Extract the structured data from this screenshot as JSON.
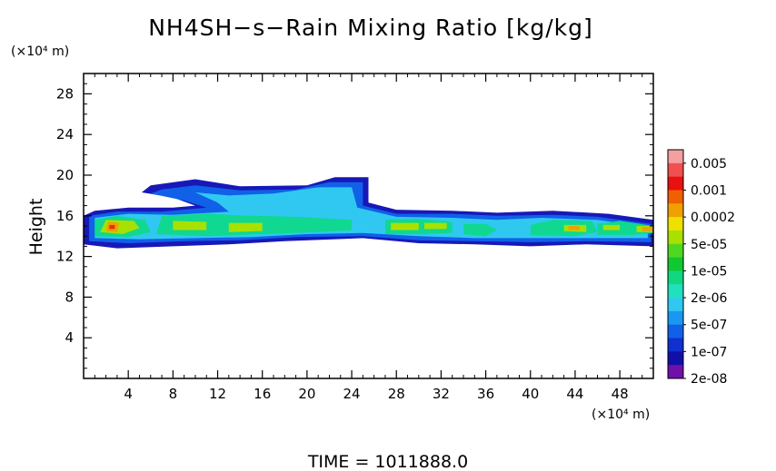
{
  "chart_data": {
    "type": "heatmap",
    "title": "NH4SH−s−Rain Mixing Ratio [kg/kg]",
    "ylabel": "Height",
    "y_unit_label": "(×10⁴ m)",
    "x_unit_label": "(×10⁴ m)",
    "time_label": "TIME = 1011888.0",
    "xlim": [
      0,
      51
    ],
    "ylim": [
      0,
      30
    ],
    "xticks": [
      4,
      8,
      12,
      16,
      20,
      24,
      28,
      32,
      36,
      40,
      44,
      48
    ],
    "yticks": [
      4,
      8,
      12,
      16,
      20,
      24,
      28
    ],
    "colorbar": {
      "labels": [
        "0.005",
        "0.001",
        "0.0002",
        "5e-05",
        "1e-05",
        "2e-06",
        "5e-07",
        "1e-07",
        "2e-08"
      ],
      "colors": [
        "#f4a0a0",
        "#f05050",
        "#e81010",
        "#f06000",
        "#f0a000",
        "#f0e000",
        "#a8e000",
        "#50d820",
        "#10c830",
        "#10d880",
        "#20e0c0",
        "#30c8f0",
        "#1898f0",
        "#1060e8",
        "#1030d0",
        "#1010a8",
        "#7010a8"
      ]
    },
    "layers": [
      {
        "value": "2e-08",
        "color": "#1818b8",
        "regions": [
          {
            "poly": [
              [
                0,
                13.2
              ],
              [
                3,
                12.8
              ],
              [
                8,
                13.0
              ],
              [
                13,
                13.2
              ],
              [
                18,
                13.5
              ],
              [
                25,
                13.8
              ],
              [
                30,
                13.3
              ],
              [
                35,
                13.2
              ],
              [
                40,
                13.0
              ],
              [
                45,
                13.2
              ],
              [
                51,
                13.0
              ],
              [
                51,
                15.6
              ],
              [
                47,
                16.2
              ],
              [
                42,
                16.5
              ],
              [
                37,
                16.3
              ],
              [
                33,
                16.5
              ],
              [
                28,
                16.6
              ],
              [
                25.5,
                17.3
              ],
              [
                25.5,
                19.8
              ],
              [
                22.5,
                19.8
              ],
              [
                20,
                19.0
              ],
              [
                14,
                18.9
              ],
              [
                10,
                19.6
              ],
              [
                6,
                19.0
              ],
              [
                5.2,
                18.3
              ],
              [
                8,
                17.8
              ],
              [
                10,
                17.0
              ],
              [
                8,
                16.8
              ],
              [
                4,
                16.8
              ],
              [
                1,
                16.5
              ],
              [
                0,
                16.0
              ]
            ]
          }
        ]
      },
      {
        "value": "1e-07",
        "color": "#1060e8",
        "regions": [
          {
            "poly": [
              [
                0.5,
                13.5
              ],
              [
                4,
                13.3
              ],
              [
                9,
                13.5
              ],
              [
                14,
                13.6
              ],
              [
                19,
                13.9
              ],
              [
                25,
                14.0
              ],
              [
                30,
                13.6
              ],
              [
                35,
                13.5
              ],
              [
                40,
                13.4
              ],
              [
                45,
                13.5
              ],
              [
                50.8,
                13.4
              ],
              [
                50.8,
                15.2
              ],
              [
                46,
                15.9
              ],
              [
                42,
                16.1
              ],
              [
                37,
                16.0
              ],
              [
                33,
                16.2
              ],
              [
                28,
                16.2
              ],
              [
                25,
                17.0
              ],
              [
                25,
                19.3
              ],
              [
                22,
                19.3
              ],
              [
                19,
                18.6
              ],
              [
                14,
                18.5
              ],
              [
                10,
                19.0
              ],
              [
                7,
                18.6
              ],
              [
                6,
                18.2
              ],
              [
                9,
                17.5
              ],
              [
                11,
                16.8
              ],
              [
                7,
                16.4
              ],
              [
                3,
                16.4
              ],
              [
                0.5,
                16.0
              ]
            ]
          }
        ]
      },
      {
        "value": "5e-07",
        "color": "#30c8f0",
        "regions": [
          {
            "poly": [
              [
                1,
                13.8
              ],
              [
                5,
                13.7
              ],
              [
                10,
                13.8
              ],
              [
                15,
                13.9
              ],
              [
                20,
                14.2
              ],
              [
                25,
                14.3
              ],
              [
                30,
                14.0
              ],
              [
                35,
                13.8
              ],
              [
                40,
                13.8
              ],
              [
                45,
                13.8
              ],
              [
                50.5,
                13.8
              ],
              [
                50.5,
                14.9
              ],
              [
                46,
                15.6
              ],
              [
                41,
                15.8
              ],
              [
                37,
                15.6
              ],
              [
                33,
                15.8
              ],
              [
                28,
                15.9
              ],
              [
                24.5,
                16.8
              ],
              [
                24,
                18.8
              ],
              [
                21,
                18.8
              ],
              [
                17,
                18.2
              ],
              [
                13,
                18.0
              ],
              [
                10,
                18.3
              ],
              [
                12,
                17.3
              ],
              [
                13,
                16.4
              ],
              [
                8,
                16.1
              ],
              [
                4,
                16.2
              ],
              [
                1,
                15.8
              ]
            ]
          }
        ]
      },
      {
        "value": "5e-06",
        "color": "#10d890",
        "regions": [
          {
            "poly": [
              [
                1,
                14.0
              ],
              [
                4,
                13.9
              ],
              [
                6,
                14.4
              ],
              [
                5.5,
                15.6
              ],
              [
                3,
                16.0
              ],
              [
                1,
                15.6
              ]
            ]
          },
          {
            "poly": [
              [
                6.5,
                14.2
              ],
              [
                11,
                14.0
              ],
              [
                16,
                14.2
              ],
              [
                21,
                14.4
              ],
              [
                24,
                14.6
              ],
              [
                24,
                15.6
              ],
              [
                19,
                15.9
              ],
              [
                15,
                16.0
              ],
              [
                11,
                16.2
              ],
              [
                7,
                16.0
              ]
            ]
          },
          {
            "poly": [
              [
                27,
                14.2
              ],
              [
                30,
                14.2
              ],
              [
                33,
                14.3
              ],
              [
                33,
                15.4
              ],
              [
                30,
                15.7
              ],
              [
                27,
                15.6
              ]
            ]
          },
          {
            "poly": [
              [
                34,
                14.2
              ],
              [
                36,
                14.0
              ],
              [
                37,
                14.6
              ],
              [
                36,
                15.2
              ],
              [
                34,
                15.2
              ]
            ]
          },
          {
            "poly": [
              [
                40,
                14.1
              ],
              [
                44,
                14.0
              ],
              [
                46,
                14.4
              ],
              [
                45.5,
                15.5
              ],
              [
                42,
                15.6
              ],
              [
                40,
                15.1
              ]
            ]
          },
          {
            "poly": [
              [
                46,
                14.1
              ],
              [
                49,
                14.1
              ],
              [
                51,
                14.3
              ],
              [
                51,
                15.0
              ],
              [
                48,
                15.5
              ],
              [
                46,
                15.2
              ]
            ]
          }
        ]
      },
      {
        "value": "5e-05",
        "color": "#a8e000",
        "regions": [
          {
            "poly": [
              [
                1.5,
                14.4
              ],
              [
                3.5,
                14.2
              ],
              [
                5,
                14.8
              ],
              [
                4.5,
                15.5
              ],
              [
                2,
                15.6
              ]
            ]
          },
          {
            "poly": [
              [
                8,
                14.6
              ],
              [
                11,
                14.6
              ],
              [
                11,
                15.4
              ],
              [
                8,
                15.5
              ]
            ]
          },
          {
            "poly": [
              [
                13,
                14.4
              ],
              [
                16,
                14.5
              ],
              [
                16,
                15.3
              ],
              [
                13,
                15.3
              ]
            ]
          },
          {
            "poly": [
              [
                27.5,
                14.6
              ],
              [
                30,
                14.6
              ],
              [
                30,
                15.3
              ],
              [
                27.5,
                15.3
              ]
            ]
          },
          {
            "poly": [
              [
                30.5,
                14.7
              ],
              [
                32.5,
                14.7
              ],
              [
                32.5,
                15.3
              ],
              [
                30.5,
                15.3
              ]
            ]
          },
          {
            "poly": [
              [
                43,
                14.5
              ],
              [
                45,
                14.4
              ],
              [
                45,
                15.1
              ],
              [
                43,
                15.1
              ]
            ]
          },
          {
            "poly": [
              [
                46.5,
                14.6
              ],
              [
                48,
                14.6
              ],
              [
                48,
                15.1
              ],
              [
                46.5,
                15.1
              ]
            ]
          },
          {
            "poly": [
              [
                49.5,
                14.4
              ],
              [
                51,
                14.4
              ],
              [
                51,
                15.0
              ],
              [
                49.5,
                15.0
              ]
            ]
          }
        ]
      },
      {
        "value": "0.0002",
        "color": "#f0a000",
        "regions": [
          {
            "poly": [
              [
                2,
                14.5
              ],
              [
                3,
                14.4
              ],
              [
                3.2,
                15.3
              ],
              [
                2.2,
                15.4
              ]
            ]
          },
          {
            "poly": [
              [
                43.4,
                14.6
              ],
              [
                44.4,
                14.6
              ],
              [
                44.4,
                15.0
              ],
              [
                43.4,
                15.0
              ]
            ]
          },
          {
            "poly": [
              [
                50,
                14.5
              ],
              [
                51,
                14.5
              ],
              [
                51,
                14.9
              ],
              [
                50,
                14.9
              ]
            ]
          }
        ]
      },
      {
        "value": "0.001",
        "color": "#e83010",
        "regions": [
          {
            "poly": [
              [
                2.3,
                14.7
              ],
              [
                2.8,
                14.7
              ],
              [
                2.8,
                15.1
              ],
              [
                2.3,
                15.1
              ]
            ]
          }
        ]
      }
    ]
  }
}
